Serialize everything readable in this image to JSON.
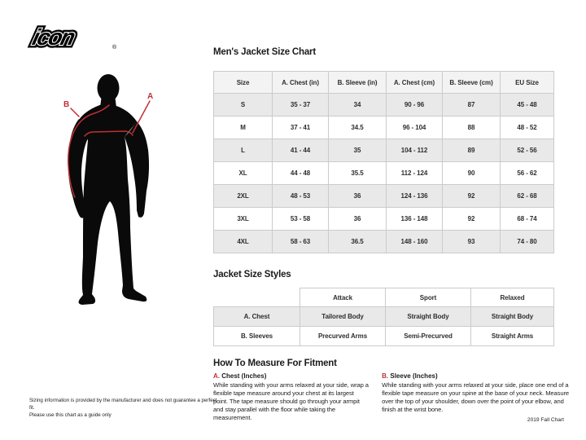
{
  "theme": {
    "accent": "#c22f35",
    "border": "#cbcbcb",
    "row_gray": "#e9e9e9",
    "header_gray": "#f3f3f3"
  },
  "logo": {
    "text": "icon",
    "reg": "®"
  },
  "figure": {
    "label_a": "A",
    "label_b": "B"
  },
  "size_chart": {
    "title": "Men's Jacket Size Chart",
    "columns": [
      "Size",
      "A. Chest (in)",
      "B. Sleeve (in)",
      "A. Chest (cm)",
      "B. Sleeve (cm)",
      "EU Size"
    ],
    "rows": [
      [
        "S",
        "35 - 37",
        "34",
        "90 - 96",
        "87",
        "45 - 48"
      ],
      [
        "M",
        "37 - 41",
        "34.5",
        "96 - 104",
        "88",
        "48 - 52"
      ],
      [
        "L",
        "41 - 44",
        "35",
        "104 - 112",
        "89",
        "52 - 56"
      ],
      [
        "XL",
        "44 - 48",
        "35.5",
        "112 - 124",
        "90",
        "56 - 62"
      ],
      [
        "2XL",
        "48 - 53",
        "36",
        "124 - 136",
        "92",
        "62 - 68"
      ],
      [
        "3XL",
        "53 - 58",
        "36",
        "136 - 148",
        "92",
        "68 - 74"
      ],
      [
        "4XL",
        "58 - 63",
        "36.5",
        "148 - 160",
        "93",
        "74 - 80"
      ]
    ]
  },
  "styles_chart": {
    "title": "Jacket Size Styles",
    "columns": [
      "",
      "Attack",
      "Sport",
      "Relaxed"
    ],
    "rows": [
      [
        "A. Chest",
        "Tailored Body",
        "Straight Body",
        "Straight Body"
      ],
      [
        "B. Sleeves",
        "Precurved Arms",
        "Semi-Precurved",
        "Straight Arms"
      ]
    ]
  },
  "measure": {
    "title": "How To Measure For Fitment",
    "sections": [
      {
        "prefix": "A.",
        "heading": "Chest (Inches)",
        "body": "While standing with your arms relaxed at your side, wrap a flexible tape measure around your chest at its largest point. The tape measure should go through your armpit and stay parallel with the floor while taking the measurement."
      },
      {
        "prefix": "B.",
        "heading": "Sleeve (Inches)",
        "body": "While standing with your arms relaxed at your side, place one end of a flexible tape measure on your spine at the base of your neck. Measure over the top of your shoulder, down over the point of your elbow, and finish at the wrist bone."
      }
    ]
  },
  "footer": {
    "disclaimer_lines": [
      "Sizing information is provided by the manufacturer and does not guarantee a perfect fit.",
      "Please use this chart as a guide only"
    ],
    "edition": "2019 Fall Chart"
  }
}
